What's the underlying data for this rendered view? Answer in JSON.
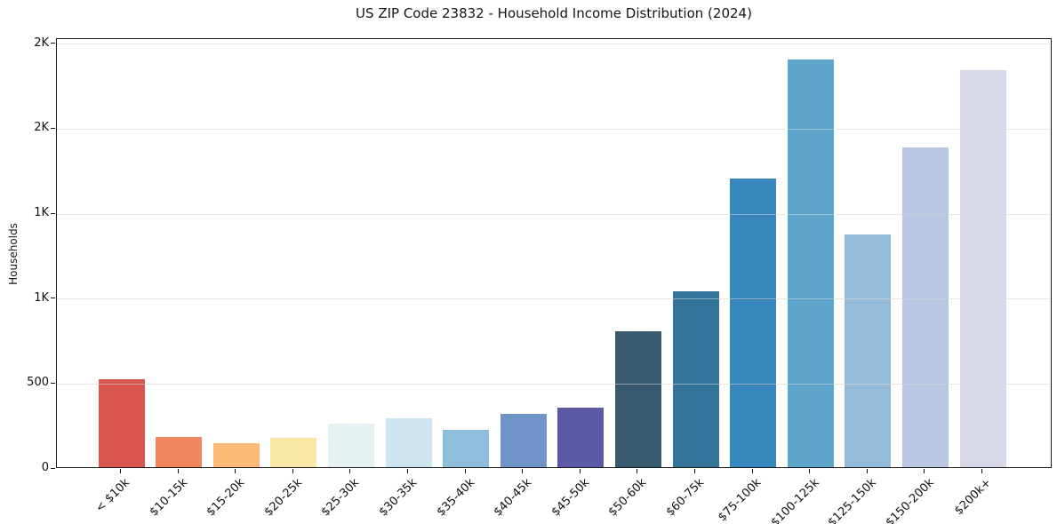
{
  "chart_data": {
    "type": "bar",
    "title": "US ZIP Code 23832 - Household Income Distribution (2024)",
    "xlabel": "",
    "ylabel": "Households",
    "categories": [
      "< $10k",
      "$10-15k",
      "$15-20k",
      "$20-25k",
      "$25-30k",
      "$30-35k",
      "$35-40k",
      "$40-45k",
      "$45-50k",
      "$50-60k",
      "$60-75k",
      "$75-100k",
      "$100-125k",
      "$125-150k",
      "$150-200k",
      "$200k+"
    ],
    "values": [
      515,
      180,
      140,
      172,
      255,
      290,
      222,
      316,
      352,
      800,
      1035,
      1700,
      2400,
      1370,
      1880,
      2335
    ],
    "bar_colors": [
      "#d9564f",
      "#f1855f",
      "#f9bb77",
      "#fce8a6",
      "#e6f1f4",
      "#cbe4ef",
      "#8fbedd",
      "#7094c7",
      "#5c5aa7",
      "#375a70",
      "#33739a",
      "#3787bd",
      "#5ea6cc",
      "#95bbdb",
      "#b8c8e3",
      "#d8d9e8"
    ],
    "ylim": [
      0,
      2500
    ],
    "ytick_values": [
      0,
      500,
      1000,
      1500,
      2000,
      2500
    ],
    "ytick_labels": [
      "0",
      "500",
      "1K",
      "1K",
      "2K",
      "2K"
    ],
    "grid": "horizontal",
    "grid_above_bars": true,
    "legend": "none",
    "background": "#ffffff",
    "axis_text_color": "#111111",
    "spine_color": "#1a1a1a",
    "grid_color": "#e8e8e8"
  }
}
